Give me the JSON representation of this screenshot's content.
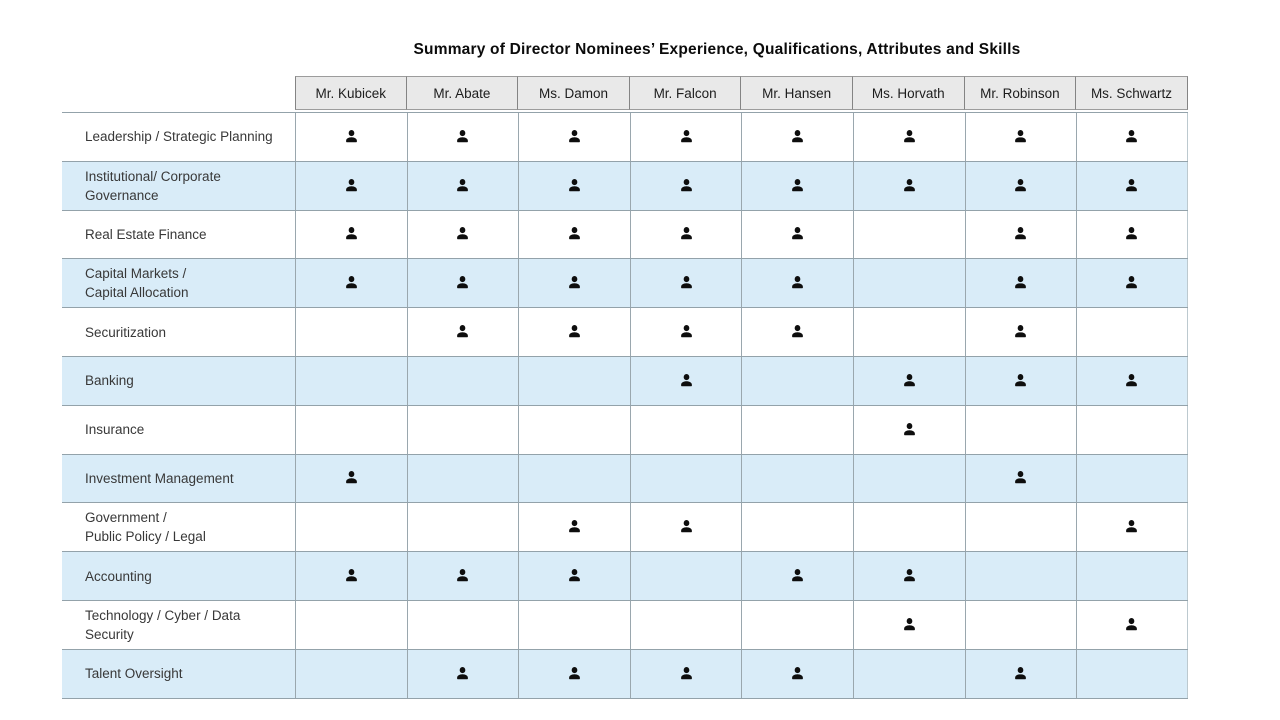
{
  "page_title": "Summary of Director Nominees’ Experience, Qualifications, Attributes and Skills",
  "table": {
    "columns": [
      "Mr. Kubicek",
      "Mr. Abate",
      "Ms. Damon",
      "Mr. Falcon",
      "Mr. Hansen",
      "Ms. Horvath",
      "Mr. Robinson",
      "Ms. Schwartz"
    ],
    "mark_icon": "person-icon",
    "rows": [
      {
        "label_lines": [
          "Leadership / Strategic Planning"
        ],
        "shaded": false,
        "marks": [
          1,
          1,
          1,
          1,
          1,
          1,
          1,
          1
        ]
      },
      {
        "label_lines": [
          "Institutional/ Corporate",
          "Governance"
        ],
        "shaded": true,
        "marks": [
          1,
          1,
          1,
          1,
          1,
          1,
          1,
          1
        ]
      },
      {
        "label_lines": [
          "Real Estate Finance"
        ],
        "shaded": false,
        "marks": [
          1,
          1,
          1,
          1,
          1,
          0,
          1,
          1
        ]
      },
      {
        "label_lines": [
          "Capital Markets /",
          "Capital Allocation"
        ],
        "shaded": true,
        "marks": [
          1,
          1,
          1,
          1,
          1,
          0,
          1,
          1
        ]
      },
      {
        "label_lines": [
          "Securitization"
        ],
        "shaded": false,
        "marks": [
          0,
          1,
          1,
          1,
          1,
          0,
          1,
          0
        ]
      },
      {
        "label_lines": [
          "Banking"
        ],
        "shaded": true,
        "marks": [
          0,
          0,
          0,
          1,
          0,
          1,
          1,
          1
        ]
      },
      {
        "label_lines": [
          "Insurance"
        ],
        "shaded": false,
        "marks": [
          0,
          0,
          0,
          0,
          0,
          1,
          0,
          0
        ]
      },
      {
        "label_lines": [
          "Investment Management"
        ],
        "shaded": true,
        "marks": [
          1,
          0,
          0,
          0,
          0,
          0,
          1,
          0
        ]
      },
      {
        "label_lines": [
          "Government /",
          "Public Policy / Legal"
        ],
        "shaded": false,
        "marks": [
          0,
          0,
          1,
          1,
          0,
          0,
          0,
          1
        ]
      },
      {
        "label_lines": [
          "Accounting"
        ],
        "shaded": true,
        "marks": [
          1,
          1,
          1,
          0,
          1,
          1,
          0,
          0
        ]
      },
      {
        "label_lines": [
          "Technology / Cyber / Data",
          "Security"
        ],
        "shaded": false,
        "marks": [
          0,
          0,
          0,
          0,
          0,
          1,
          0,
          1
        ]
      },
      {
        "label_lines": [
          "Talent Oversight"
        ],
        "shaded": true,
        "marks": [
          0,
          1,
          1,
          1,
          1,
          0,
          1,
          0
        ]
      }
    ]
  },
  "colors": {
    "title_color": "#0b0b0b",
    "header_bg": "#e9e9e9",
    "header_border": "#9c9c9c",
    "header_divider": "#848484",
    "shaded_row_bg": "#d9ecf8",
    "row_border": "#93a2aa",
    "column_border": "#9aa7ae",
    "outer_right_border": "#bcc9cf",
    "label_color": "#383838",
    "icon_color": "#0e0e0e"
  }
}
